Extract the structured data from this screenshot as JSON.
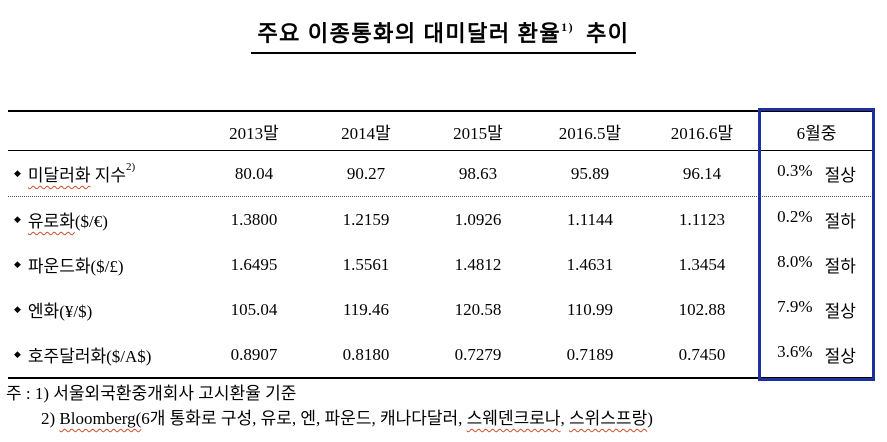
{
  "title": {
    "main": "주요 이종통화의 대미달러 환율",
    "sup": "1)",
    "tail": "추이"
  },
  "table": {
    "bullet": "◆",
    "columns": [
      "2013말",
      "2014말",
      "2015말",
      "2016.5말",
      "2016.6말",
      "6월중"
    ],
    "rows": [
      {
        "label_wavy": "미달러화",
        "label_rest": " 지수",
        "label_sup": "2)",
        "values": [
          "80.04",
          "90.27",
          "98.63",
          "95.89",
          "96.14"
        ],
        "change_pct": "0.3%",
        "change_dir": "절상"
      },
      {
        "label_wavy": "유로화",
        "label_rest": "($/€)",
        "values": [
          "1.3800",
          "1.2159",
          "1.0926",
          "1.1144",
          "1.1123"
        ],
        "change_pct": "0.2%",
        "change_dir": "절하"
      },
      {
        "label_rest": "파운드화($/£)",
        "values": [
          "1.6495",
          "1.5561",
          "1.4812",
          "1.4631",
          "1.3454"
        ],
        "change_pct": "8.0%",
        "change_dir": "절하"
      },
      {
        "label_rest": "엔화(¥/$)",
        "values": [
          "105.04",
          "119.46",
          "120.58",
          "110.99",
          "102.88"
        ],
        "change_pct": "7.9%",
        "change_dir": "절상"
      },
      {
        "label_rest": "호주달러화($/A$)",
        "values": [
          "0.8907",
          "0.8180",
          "0.7279",
          "0.7189",
          "0.7450"
        ],
        "change_pct": "3.6%",
        "change_dir": "절상"
      }
    ]
  },
  "notes": {
    "note1": "주 : 1) 서울외국환중개회사 고시환율 기준",
    "note2_prefix": "2) ",
    "note2_wavy1": "Bloomberg(",
    "note2_mid1": "6개 통화로 구성, 유로, 엔, 파운드, 캐나다달러, ",
    "note2_wavy2": "스웨덴크로나",
    "note2_mid2": ", ",
    "note2_wavy3": "스위스프랑",
    "note2_suffix": ")"
  },
  "colors": {
    "highlight_border": "#1e2f9e",
    "spellcheck": "#c9502e"
  }
}
